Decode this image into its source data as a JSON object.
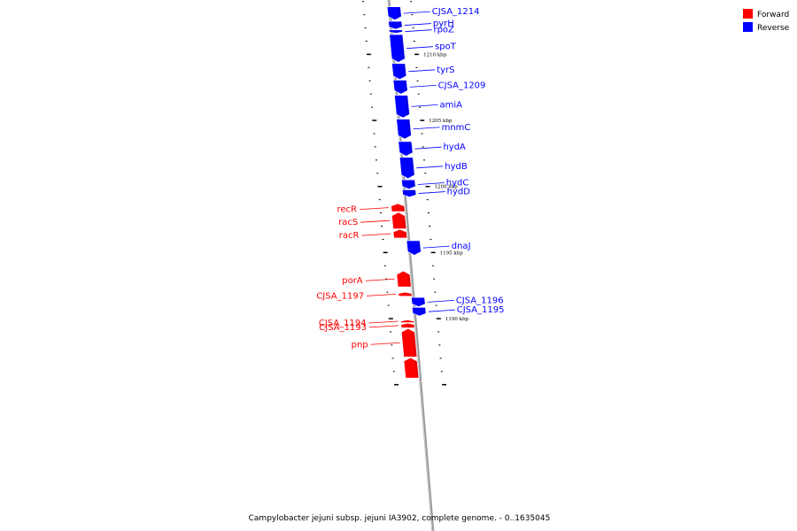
{
  "genome": {
    "caption": "Campylobacter jejuni subsp. jejuni IA3902, complete genome. - 0..1635045"
  },
  "legend": {
    "forward": {
      "label": "Forward",
      "color": "#ff0000"
    },
    "reverse": {
      "label": "Reverse",
      "color": "#0000ff"
    }
  },
  "colors": {
    "forward": "#ff0000",
    "reverse": "#0000ff",
    "backbone": "#999999"
  },
  "ticks": [
    {
      "kbp": 1210,
      "label": "1210 kbp"
    },
    {
      "kbp": 1205,
      "label": "1205 kbp"
    },
    {
      "kbp": 1200,
      "label": "1200 kbp"
    },
    {
      "kbp": 1195,
      "label": "1195 kbp"
    },
    {
      "kbp": 1190,
      "label": "1190 kbp"
    }
  ],
  "genes": [
    {
      "name": "CJSA_1214",
      "strand": "reverse",
      "start_kbp": 1213.6,
      "end_kbp": 1212.6
    },
    {
      "name": "pyrH",
      "strand": "reverse",
      "start_kbp": 1212.5,
      "end_kbp": 1211.9
    },
    {
      "name": "rpoZ",
      "strand": "reverse",
      "start_kbp": 1211.85,
      "end_kbp": 1211.6
    },
    {
      "name": "spoT",
      "strand": "reverse",
      "start_kbp": 1211.5,
      "end_kbp": 1209.4
    },
    {
      "name": "tyrS",
      "strand": "reverse",
      "start_kbp": 1209.3,
      "end_kbp": 1208.1
    },
    {
      "name": "CJSA_1209",
      "strand": "reverse",
      "start_kbp": 1208.05,
      "end_kbp": 1207.0
    },
    {
      "name": "amiA",
      "strand": "reverse",
      "start_kbp": 1206.9,
      "end_kbp": 1205.2
    },
    {
      "name": "mnmC",
      "strand": "reverse",
      "start_kbp": 1205.1,
      "end_kbp": 1203.6
    },
    {
      "name": "hydA",
      "strand": "reverse",
      "start_kbp": 1203.4,
      "end_kbp": 1202.3
    },
    {
      "name": "hydB",
      "strand": "reverse",
      "start_kbp": 1202.2,
      "end_kbp": 1200.6
    },
    {
      "name": "hydC",
      "strand": "reverse",
      "start_kbp": 1200.5,
      "end_kbp": 1199.8
    },
    {
      "name": "hydD",
      "strand": "reverse",
      "start_kbp": 1199.75,
      "end_kbp": 1199.2
    },
    {
      "name": "recR",
      "strand": "forward",
      "start_kbp": 1198.7,
      "end_kbp": 1198.1
    },
    {
      "name": "racS",
      "strand": "forward",
      "start_kbp": 1198.05,
      "end_kbp": 1196.8
    },
    {
      "name": "racR",
      "strand": "forward",
      "start_kbp": 1196.75,
      "end_kbp": 1196.1
    },
    {
      "name": "dnaJ",
      "strand": "reverse",
      "start_kbp": 1195.9,
      "end_kbp": 1194.8
    },
    {
      "name": "porA",
      "strand": "forward",
      "start_kbp": 1193.6,
      "end_kbp": 1192.4
    },
    {
      "name": "CJSA_1197",
      "strand": "forward",
      "start_kbp": 1192.0,
      "end_kbp": 1191.7
    },
    {
      "name": "CJSA_1196",
      "strand": "reverse",
      "start_kbp": 1191.6,
      "end_kbp": 1190.9
    },
    {
      "name": "CJSA_1195",
      "strand": "reverse",
      "start_kbp": 1190.85,
      "end_kbp": 1190.2
    },
    {
      "name": "CJSA_1194",
      "strand": "forward",
      "start_kbp": 1189.9,
      "end_kbp": 1189.7
    },
    {
      "name": "CJSA_1193",
      "strand": "forward",
      "start_kbp": 1189.65,
      "end_kbp": 1189.3
    },
    {
      "name": "pnp",
      "strand": "forward",
      "start_kbp": 1189.25,
      "end_kbp": 1187.1
    },
    {
      "name": "",
      "strand": "forward",
      "start_kbp": 1187.05,
      "end_kbp": 1185.5
    }
  ]
}
